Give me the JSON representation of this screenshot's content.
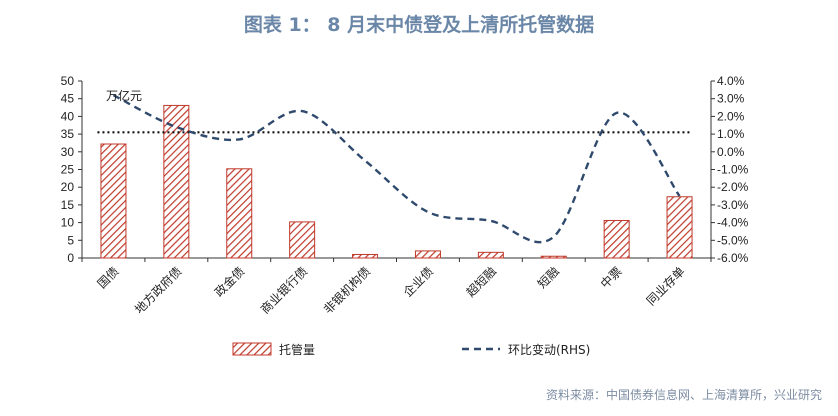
{
  "title": "图表 1： 8 月末中债登及上清所托管数据",
  "source": "资料来源：中国债券信息网、上海清算所，兴业研究",
  "colors": {
    "bar": "#c0392b",
    "line": "#2f4a6d",
    "title": "#6b87a8"
  },
  "chart_data": {
    "type": "bar",
    "unit_label": "万亿元",
    "categories": [
      "国债",
      "地方政府债",
      "政金债",
      "商业银行债",
      "非银机构债",
      "企业债",
      "超短融",
      "短融",
      "中票",
      "同业存单"
    ],
    "series": [
      {
        "name": "托管量",
        "type": "bar",
        "axis": "left",
        "values": [
          32.2,
          43.1,
          25.2,
          10.2,
          1.0,
          2.0,
          1.6,
          0.5,
          10.6,
          17.3
        ]
      },
      {
        "name": "环比变动(RHS)",
        "type": "line",
        "axis": "right",
        "values": [
          3.2,
          1.4,
          0.7,
          2.3,
          -0.5,
          -3.4,
          -3.9,
          -4.8,
          2.2,
          -2.5
        ]
      }
    ],
    "reference_line": {
      "axis": "right",
      "value": 1.1
    },
    "ylim_left": [
      0,
      50
    ],
    "yticks_left": [
      0,
      5,
      10,
      15,
      20,
      25,
      30,
      35,
      40,
      45,
      50
    ],
    "ylim_right": [
      -6.0,
      4.0
    ],
    "yticks_right": [
      "-6.0%",
      "-5.0%",
      "-4.0%",
      "-3.0%",
      "-2.0%",
      "-1.0%",
      "0.0%",
      "1.0%",
      "2.0%",
      "3.0%",
      "4.0%"
    ],
    "legend_position": "bottom"
  }
}
